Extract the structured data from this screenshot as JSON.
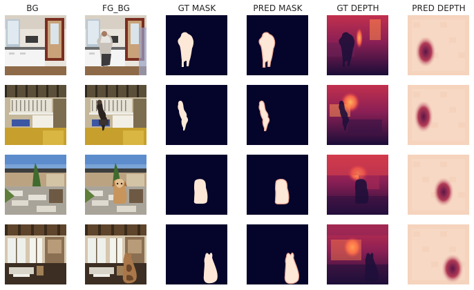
{
  "columns": [
    "BG",
    "FG_BG",
    "GT MASK",
    "PRED MASK",
    "GT DEPTH",
    "PRED DEPTH"
  ],
  "rows": [
    {
      "scene": "kitchen",
      "foreground": "person"
    },
    {
      "scene": "loft interior",
      "foreground": "person"
    },
    {
      "scene": "outdoor patio",
      "foreground": "dog"
    },
    {
      "scene": "living room",
      "foreground": "cat"
    }
  ],
  "colors": {
    "mask_background": "#05042a",
    "mask_foreground": "#fde7d6",
    "pred_mask_edge": "#e9a08f",
    "depth_far": "#e23f3f",
    "depth_near": "#1e0f3a",
    "pred_depth_background": "#f5d3bd",
    "pred_depth_object": "#7a1f4a"
  }
}
